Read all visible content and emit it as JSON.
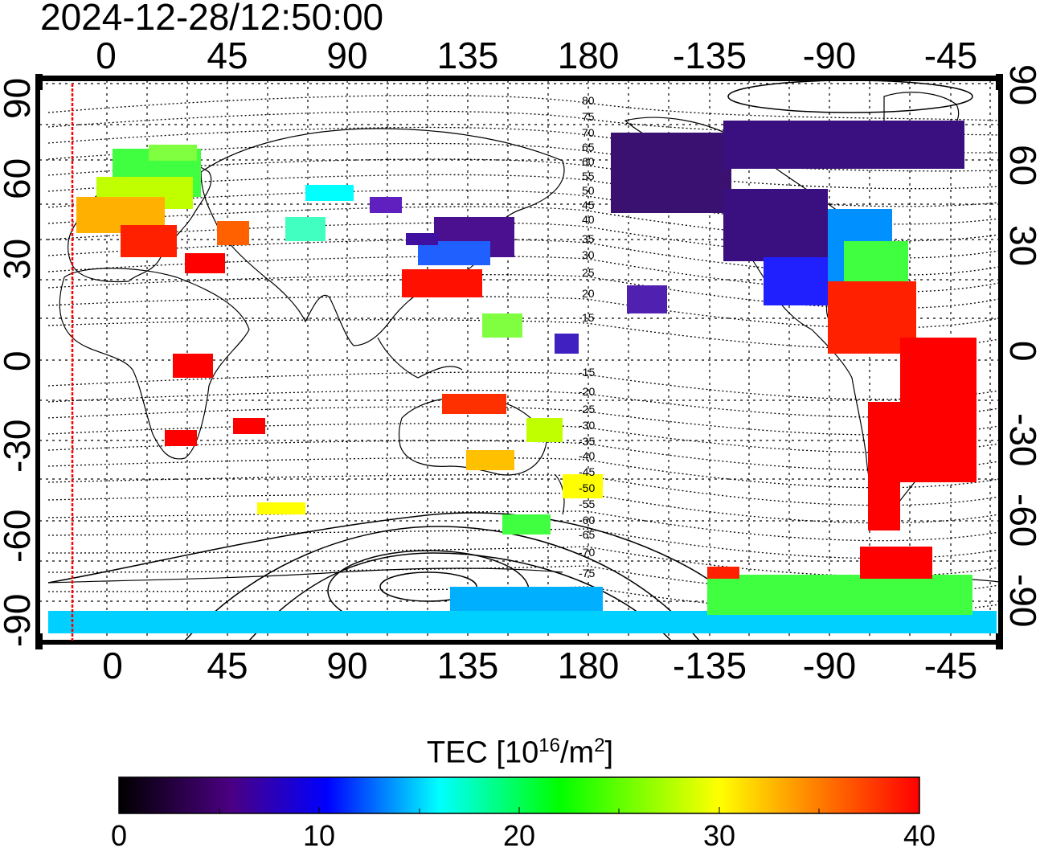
{
  "timestamp": "2024-12-28/12:50:00",
  "x_axis": {
    "ticks": [
      "0",
      "45",
      "90",
      "135",
      "180",
      "-135",
      "-90",
      "-45"
    ]
  },
  "y_axis": {
    "ticks": [
      "90",
      "60",
      "30",
      "0",
      "-30",
      "-60",
      "-90"
    ]
  },
  "contour_labels_north": [
    "80",
    "75",
    "70",
    "65",
    "60",
    "55",
    "50",
    "45",
    "40",
    "35",
    "30",
    "25",
    "20",
    "15"
  ],
  "contour_labels_south": [
    "-15",
    "-20",
    "-25",
    "-30",
    "-35",
    "-40",
    "-45",
    "-50",
    "-55",
    "-60",
    "-65",
    "-70",
    "-75"
  ],
  "colorbar": {
    "title_main": "TEC  [10",
    "title_exp": "16",
    "title_unit": "/m",
    "title_unit_exp": "2",
    "title_close": "]",
    "ticks": [
      "0",
      "10",
      "20",
      "30",
      "40"
    ],
    "min": 0,
    "max": 40,
    "colors": [
      "#000000",
      "#4b0082",
      "#0000ff",
      "#00ffff",
      "#00ff00",
      "#ffff00",
      "#ff8000",
      "#ff0000"
    ]
  },
  "marker_color": "#ff0000"
}
